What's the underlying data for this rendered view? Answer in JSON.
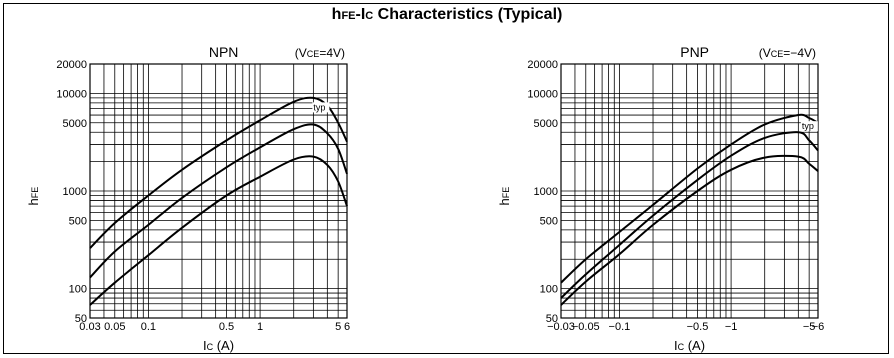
{
  "title": {
    "prefix": "h",
    "prefix_sub": "FE",
    "dash": "-I",
    "dash_sub": "C",
    "rest": " Characteristics (Typical)"
  },
  "colors": {
    "line": "#000000",
    "grid": "#000000",
    "background": "#ffffff"
  },
  "chart_data": [
    {
      "type": "line",
      "header": "NPN",
      "condition": {
        "open": "(V",
        "sub": "CE",
        "close": "=4V)"
      },
      "xlabel": {
        "main": "I",
        "sub": "C",
        "unit": "(A)"
      },
      "ylabel": {
        "main": "h",
        "sub": "FE"
      },
      "xscale": "log",
      "yscale": "log",
      "xlim": [
        0.03,
        6
      ],
      "ylim": [
        50,
        20000
      ],
      "grid": true,
      "x_ticks": [
        {
          "v": 0.03,
          "label": "0.03"
        },
        {
          "v": 0.05,
          "label": "0.05"
        },
        {
          "v": 0.1,
          "label": "0.1"
        },
        {
          "v": 0.5,
          "label": "0.5"
        },
        {
          "v": 1,
          "label": "1"
        },
        {
          "v": 5,
          "label": "5"
        },
        {
          "v": 6,
          "label": "6"
        }
      ],
      "y_ticks": [
        {
          "v": 50,
          "label": "50"
        },
        {
          "v": 100,
          "label": "100"
        },
        {
          "v": 500,
          "label": "500"
        },
        {
          "v": 1000,
          "label": "1000"
        },
        {
          "v": 5000,
          "label": "5000"
        },
        {
          "v": 10000,
          "label": "10000"
        },
        {
          "v": 20000,
          "label": "20000"
        }
      ],
      "annotation": {
        "text": "typ",
        "x": 3.0,
        "y": 6700
      },
      "series": [
        {
          "values": [
            [
              0.03,
              260
            ],
            [
              0.05,
              470
            ],
            [
              0.1,
              900
            ],
            [
              0.2,
              1650
            ],
            [
              0.5,
              3300
            ],
            [
              1,
              5300
            ],
            [
              2,
              8200
            ],
            [
              3,
              9000
            ],
            [
              4,
              7500
            ],
            [
              5,
              5000
            ],
            [
              6,
              3200
            ]
          ]
        },
        {
          "values": [
            [
              0.03,
              130
            ],
            [
              0.05,
              240
            ],
            [
              0.1,
              450
            ],
            [
              0.2,
              850
            ],
            [
              0.5,
              1750
            ],
            [
              1,
              2800
            ],
            [
              2,
              4300
            ],
            [
              3,
              4800
            ],
            [
              4,
              3900
            ],
            [
              5,
              2700
            ],
            [
              6,
              1500
            ]
          ]
        },
        {
          "values": [
            [
              0.03,
              68
            ],
            [
              0.05,
              115
            ],
            [
              0.1,
              220
            ],
            [
              0.2,
              420
            ],
            [
              0.5,
              900
            ],
            [
              1,
              1400
            ],
            [
              2,
              2100
            ],
            [
              3,
              2250
            ],
            [
              4,
              1850
            ],
            [
              5,
              1250
            ],
            [
              6,
              700
            ]
          ]
        }
      ]
    },
    {
      "type": "line",
      "header": "PNP",
      "condition": {
        "open": "(V",
        "sub": "CE",
        "close": "=−4V)"
      },
      "xlabel": {
        "main": "I",
        "sub": "C",
        "unit": "(A)"
      },
      "ylabel": {
        "main": "h",
        "sub": "FE"
      },
      "xscale": "log",
      "yscale": "log",
      "xlim": [
        -0.03,
        -6
      ],
      "ylim": [
        50,
        20000
      ],
      "grid": true,
      "x_ticks": [
        {
          "v": -0.03,
          "label": "−0.03"
        },
        {
          "v": -0.05,
          "label": "−0.05"
        },
        {
          "v": -0.1,
          "label": "−0.1"
        },
        {
          "v": -0.5,
          "label": "−0.5"
        },
        {
          "v": -1,
          "label": "−1"
        },
        {
          "v": -5,
          "label": "−5"
        },
        {
          "v": -6,
          "label": "−6"
        }
      ],
      "y_ticks": [
        {
          "v": 50,
          "label": "50"
        },
        {
          "v": 100,
          "label": "100"
        },
        {
          "v": 500,
          "label": "500"
        },
        {
          "v": 1000,
          "label": "1000"
        },
        {
          "v": 5000,
          "label": "5000"
        },
        {
          "v": 10000,
          "label": "10000"
        },
        {
          "v": 20000,
          "label": "20000"
        }
      ],
      "annotation": {
        "text": "typ",
        "x": -4.3,
        "y": 4300
      },
      "series": [
        {
          "values": [
            [
              -0.03,
              115
            ],
            [
              -0.05,
              200
            ],
            [
              -0.1,
              380
            ],
            [
              -0.2,
              720
            ],
            [
              -0.5,
              1700
            ],
            [
              -1,
              3000
            ],
            [
              -2,
              4800
            ],
            [
              -4,
              6000
            ],
            [
              -5,
              5600
            ],
            [
              -6,
              5000
            ]
          ]
        },
        {
          "values": [
            [
              -0.03,
              80
            ],
            [
              -0.05,
              140
            ],
            [
              -0.1,
              280
            ],
            [
              -0.2,
              560
            ],
            [
              -0.5,
              1300
            ],
            [
              -1,
              2300
            ],
            [
              -2,
              3500
            ],
            [
              -4,
              4000
            ],
            [
              -5,
              3300
            ],
            [
              -6,
              2600
            ]
          ]
        },
        {
          "values": [
            [
              -0.03,
              68
            ],
            [
              -0.05,
              118
            ],
            [
              -0.1,
              225
            ],
            [
              -0.2,
              450
            ],
            [
              -0.5,
              1000
            ],
            [
              -1,
              1650
            ],
            [
              -2,
              2200
            ],
            [
              -4,
              2250
            ],
            [
              -5,
              1900
            ],
            [
              -6,
              1600
            ]
          ]
        }
      ]
    }
  ]
}
